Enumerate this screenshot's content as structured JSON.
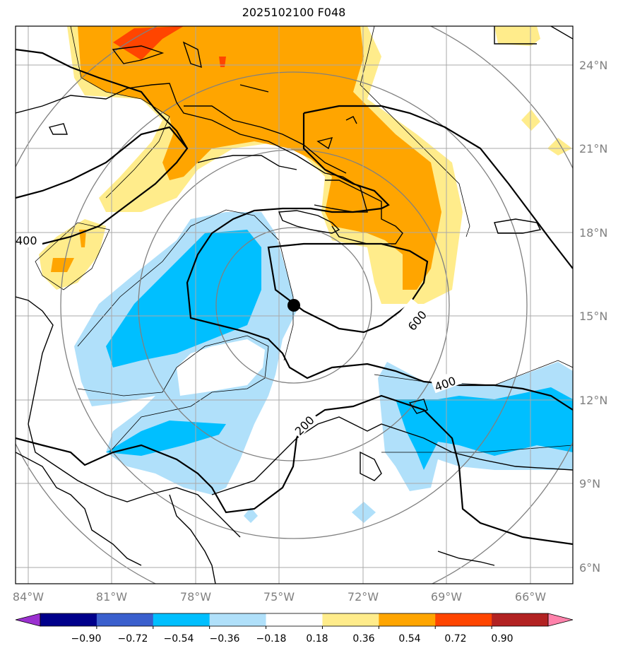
{
  "title": "2025102100 F048",
  "map": {
    "lat_labels": [
      "24°N",
      "21°N",
      "18°N",
      "15°N",
      "12°N",
      "9°N",
      "6°N"
    ],
    "lon_labels": [
      "84°W",
      "81°W",
      "78°W",
      "75°W",
      "72°W",
      "69°W",
      "66°W"
    ],
    "contour_labels": [
      "400",
      "600",
      "400",
      "200"
    ],
    "storm_center": {
      "lat": 15.4,
      "lon": 74.4
    }
  },
  "colorbar": {
    "ticks": [
      "−0.90",
      "−0.72",
      "−0.54",
      "−0.36",
      "−0.18",
      "0.18",
      "0.36",
      "0.54",
      "0.72",
      "0.90"
    ],
    "colors": [
      "#9b30d0",
      "#00008b",
      "#3a5fcd",
      "#00bfff",
      "#b0e0fa",
      "#ffffff",
      "#ffec8b",
      "#ffa500",
      "#ff4500",
      "#b22222",
      "#ff82ab"
    ]
  }
}
